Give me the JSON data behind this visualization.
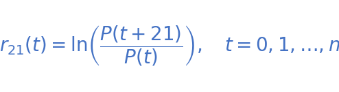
{
  "formula": "$r_{21}(t) = \\ln\\!\\left(\\dfrac{P(t+21)}{P(t)}\\right), \\quad t = 0, 1, \\ldots, n$",
  "text_color": "#4472c4",
  "background_color": "#ffffff",
  "fontsize": 20,
  "figsize": [
    4.94,
    1.35
  ],
  "dpi": 100
}
